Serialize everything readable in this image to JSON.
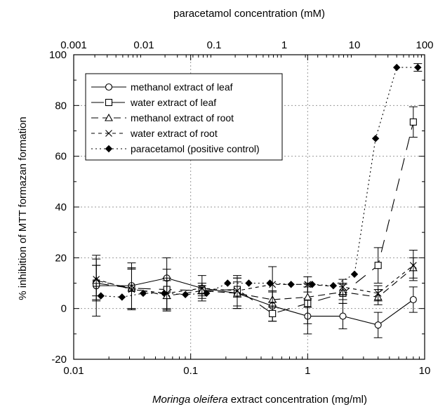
{
  "chart_data": {
    "type": "line",
    "xlabel_italic": "Moringa oleifera",
    "xlabel_rest": " extract concentration (mg/ml)",
    "x2label": "paracetamol concentration (mM)",
    "ylabel": "% inhibition of  MTT formazan formation",
    "x_scale": "log",
    "xlim": [
      0.01,
      10
    ],
    "x2_scale": "log",
    "x2lim": [
      0.001,
      100
    ],
    "ylim": [
      -20,
      100
    ],
    "grid": true,
    "legend_position": "top-left",
    "x_ticks": [
      0.01,
      0.1,
      1,
      10
    ],
    "x_tick_labels": [
      "0.01",
      "0.1",
      "1",
      "10"
    ],
    "x2_ticks": [
      0.001,
      0.01,
      0.1,
      1,
      10,
      100
    ],
    "x2_tick_labels": [
      "0.001",
      "0.01",
      "0.1",
      "1",
      "10",
      "100"
    ],
    "y_ticks": [
      -20,
      0,
      20,
      40,
      60,
      80,
      100
    ],
    "y_tick_labels": [
      "-20",
      "0",
      "20",
      "40",
      "60",
      "80",
      "100"
    ],
    "series": [
      {
        "name": "methanol extract of leaf",
        "marker": "circle",
        "dash": "",
        "axis": "bottom",
        "x": [
          0.0156,
          0.03125,
          0.0625,
          0.125,
          0.25,
          0.5,
          1,
          2,
          4,
          8
        ],
        "y": [
          9,
          9,
          12,
          8,
          6,
          1,
          -3,
          -3,
          -6.5,
          3.5
        ],
        "err": [
          12,
          9,
          8,
          5,
          6,
          6,
          7,
          5,
          5,
          5
        ]
      },
      {
        "name": "water extract of leaf",
        "marker": "square",
        "dash": "18,12",
        "axis": "bottom",
        "x": [
          0.0156,
          0.03125,
          0.0625,
          0.125,
          0.25,
          0.5,
          1,
          2,
          4,
          8
        ],
        "y": [
          10,
          8,
          7.5,
          7,
          7.5,
          -2,
          2,
          6,
          17,
          73.5
        ],
        "err": [
          7,
          8,
          8,
          3,
          3,
          3,
          8,
          4,
          7,
          6
        ]
      },
      {
        "name": "methanol extract of root",
        "marker": "triangle",
        "dash": "10,6",
        "axis": "bottom",
        "x": [
          0.0156,
          0.03125,
          0.0625,
          0.125,
          0.25,
          0.5,
          1,
          2,
          4,
          8
        ],
        "y": [
          11,
          8,
          5,
          7,
          6,
          3.5,
          4.5,
          6.5,
          4.5,
          16
        ],
        "err": [
          6,
          8,
          6,
          2,
          6,
          3,
          4,
          3,
          3,
          4
        ]
      },
      {
        "name": "water extract of root",
        "marker": "cross",
        "dash": "5,5",
        "axis": "bottom",
        "x": [
          0.0156,
          0.03125,
          0.0625,
          0.125,
          0.25,
          0.5,
          1,
          2,
          4,
          8
        ],
        "y": [
          11.5,
          7.5,
          6,
          8,
          7,
          9.5,
          9.5,
          8.5,
          6,
          17
        ],
        "err": [
          8,
          8,
          6,
          2,
          6,
          7,
          3,
          3,
          3,
          6
        ]
      },
      {
        "name": "paracetamol (positive control)",
        "marker": "diamond",
        "dash": "2,4",
        "axis": "top",
        "x": [
          0.00244,
          0.00488,
          0.00977,
          0.0195,
          0.039,
          0.078,
          0.156,
          0.3125,
          0.625,
          1.25,
          2.5,
          5,
          10,
          20,
          40,
          80
        ],
        "y": [
          5,
          4.5,
          6,
          6,
          5.5,
          6,
          10,
          10,
          10,
          9.5,
          9.5,
          9,
          13.5,
          67,
          95,
          95
        ],
        "err": [
          0,
          0,
          0,
          0,
          0,
          0,
          0,
          0,
          0,
          0,
          0,
          0,
          0,
          0,
          0,
          1.5
        ]
      }
    ]
  }
}
